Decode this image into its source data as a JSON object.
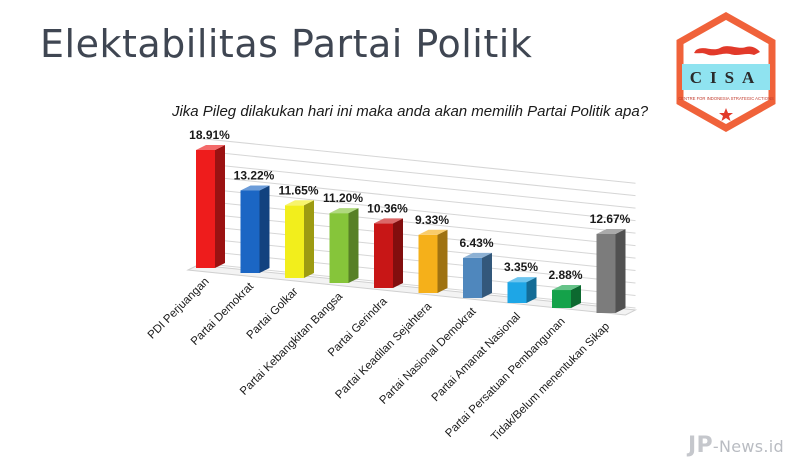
{
  "slide": {
    "title": "Elektabilitas Partai Politik"
  },
  "logo": {
    "name": "CISA",
    "tagline": "CENTRE FOR INDONESIA STRATEGIC ACTIONS",
    "colors": {
      "border": "#f0623a",
      "band": "#8fe3f0",
      "map": "#e23a2a"
    }
  },
  "watermark": {
    "prefix": "JP",
    "text": "-News.id"
  },
  "chart_data": {
    "type": "bar",
    "title": "Jika Pileg dilakukan hari ini maka anda akan memilih Partai Politik apa?",
    "categories": [
      "PDI Perjuangan",
      "Partai Demokrat",
      "Partai Golkar",
      "Partai Kebangkitan Bangsa",
      "Partai Gerindra",
      "Partai Keadilan Sejahtera",
      "Partai Nasional Demokrat",
      "Partai Amanat Nasional",
      "Partai Persatuan Pembangunan",
      "Tidak/Belum menentukan Sikap"
    ],
    "values": [
      18.91,
      13.22,
      11.65,
      11.2,
      10.36,
      9.33,
      6.43,
      3.35,
      2.88,
      12.67
    ],
    "data_labels": [
      "18.91%",
      "13.22%",
      "11.65%",
      "11.20%",
      "10.36%",
      "9.33%",
      "6.43%",
      "3.35%",
      "2.88%",
      "12.67%"
    ],
    "colors": [
      "#ee1c1c",
      "#1b66c4",
      "#f2ee1c",
      "#86c53a",
      "#c81616",
      "#f5b01a",
      "#4f87bd",
      "#1ea6e6",
      "#14a24a",
      "#7c7c7c"
    ],
    "ylim": [
      0,
      20
    ],
    "grid": true,
    "legend": "none"
  }
}
